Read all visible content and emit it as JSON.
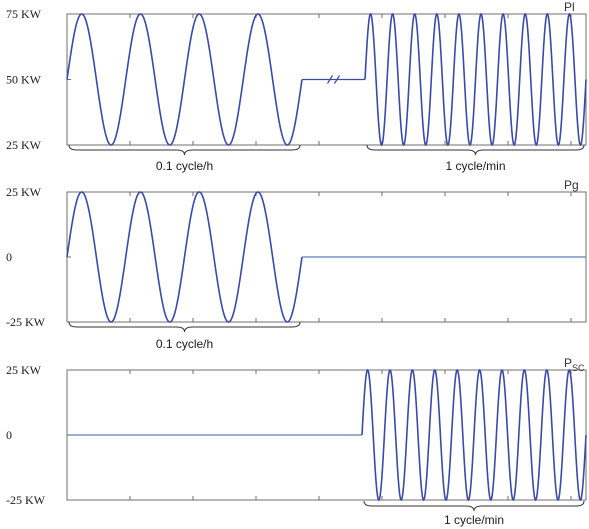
{
  "colors": {
    "series": "#3a4aa8",
    "flat": "#5b7fc0"
  },
  "chart_data": [
    {
      "type": "line",
      "title": "",
      "series_label": "Pl",
      "y_ticks": [
        "75 KW",
        "50 KW",
        "25 KW"
      ],
      "ylim": [
        25,
        75
      ],
      "x_segments": [
        {
          "kind": "sine",
          "cycles": 4,
          "center": 50,
          "amplitude": 25,
          "label": "0.1 cycle/h"
        },
        {
          "kind": "break",
          "level": 50
        },
        {
          "kind": "sine",
          "cycles": 10,
          "center": 50,
          "amplitude": 25,
          "label": "1 cycle/min"
        }
      ]
    },
    {
      "type": "line",
      "title": "",
      "series_label": "Pg",
      "y_ticks": [
        "25 KW",
        "0",
        "-25 KW"
      ],
      "ylim": [
        -25,
        25
      ],
      "x_segments": [
        {
          "kind": "sine",
          "cycles": 4,
          "center": 0,
          "amplitude": 25,
          "label": "0.1 cycle/h"
        },
        {
          "kind": "flat",
          "level": 0
        }
      ]
    },
    {
      "type": "line",
      "title": "",
      "series_label": "P",
      "series_label_sub": "SC",
      "y_ticks": [
        "25 KW",
        "0",
        "-25 KW"
      ],
      "ylim": [
        -25,
        25
      ],
      "x_segments": [
        {
          "kind": "flat",
          "level": 0
        },
        {
          "kind": "sine",
          "cycles": 10,
          "center": 0,
          "amplitude": 25,
          "label": "1 cycle/min"
        }
      ]
    }
  ]
}
